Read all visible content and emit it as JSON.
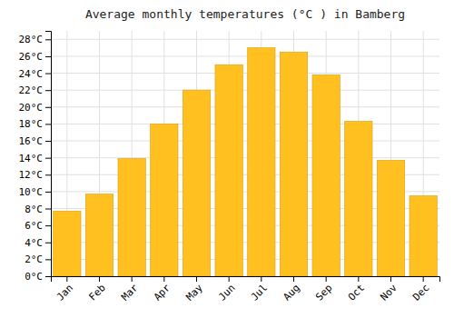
{
  "chart_data": {
    "type": "bar",
    "title": "Average monthly temperatures (°C ) in Bamberg",
    "categories": [
      "Jan",
      "Feb",
      "Mar",
      "Apr",
      "May",
      "Jun",
      "Jul",
      "Aug",
      "Sep",
      "Oct",
      "Nov",
      "Dec"
    ],
    "values": [
      7.7,
      9.7,
      13.9,
      18.0,
      22.0,
      25.0,
      27.0,
      26.5,
      23.8,
      18.3,
      13.7,
      9.5
    ],
    "color": "#FFC020",
    "ylim": [
      0,
      29
    ],
    "yticks": [
      {
        "value": 0,
        "label": "0°C"
      },
      {
        "value": 2,
        "label": "2°C"
      },
      {
        "value": 4,
        "label": "4°C"
      },
      {
        "value": 6,
        "label": "6°C"
      },
      {
        "value": 8,
        "label": "8°C"
      },
      {
        "value": 10,
        "label": "10°C"
      },
      {
        "value": 12,
        "label": "12°C"
      },
      {
        "value": 14,
        "label": "14°C"
      },
      {
        "value": 16,
        "label": "16°C"
      },
      {
        "value": 18,
        "label": "18°C"
      },
      {
        "value": 20,
        "label": "20°C"
      },
      {
        "value": 22,
        "label": "22°C"
      },
      {
        "value": 24,
        "label": "24°C"
      },
      {
        "value": 26,
        "label": "26°C"
      },
      {
        "value": 28,
        "label": "28°C"
      }
    ],
    "grid": true
  }
}
